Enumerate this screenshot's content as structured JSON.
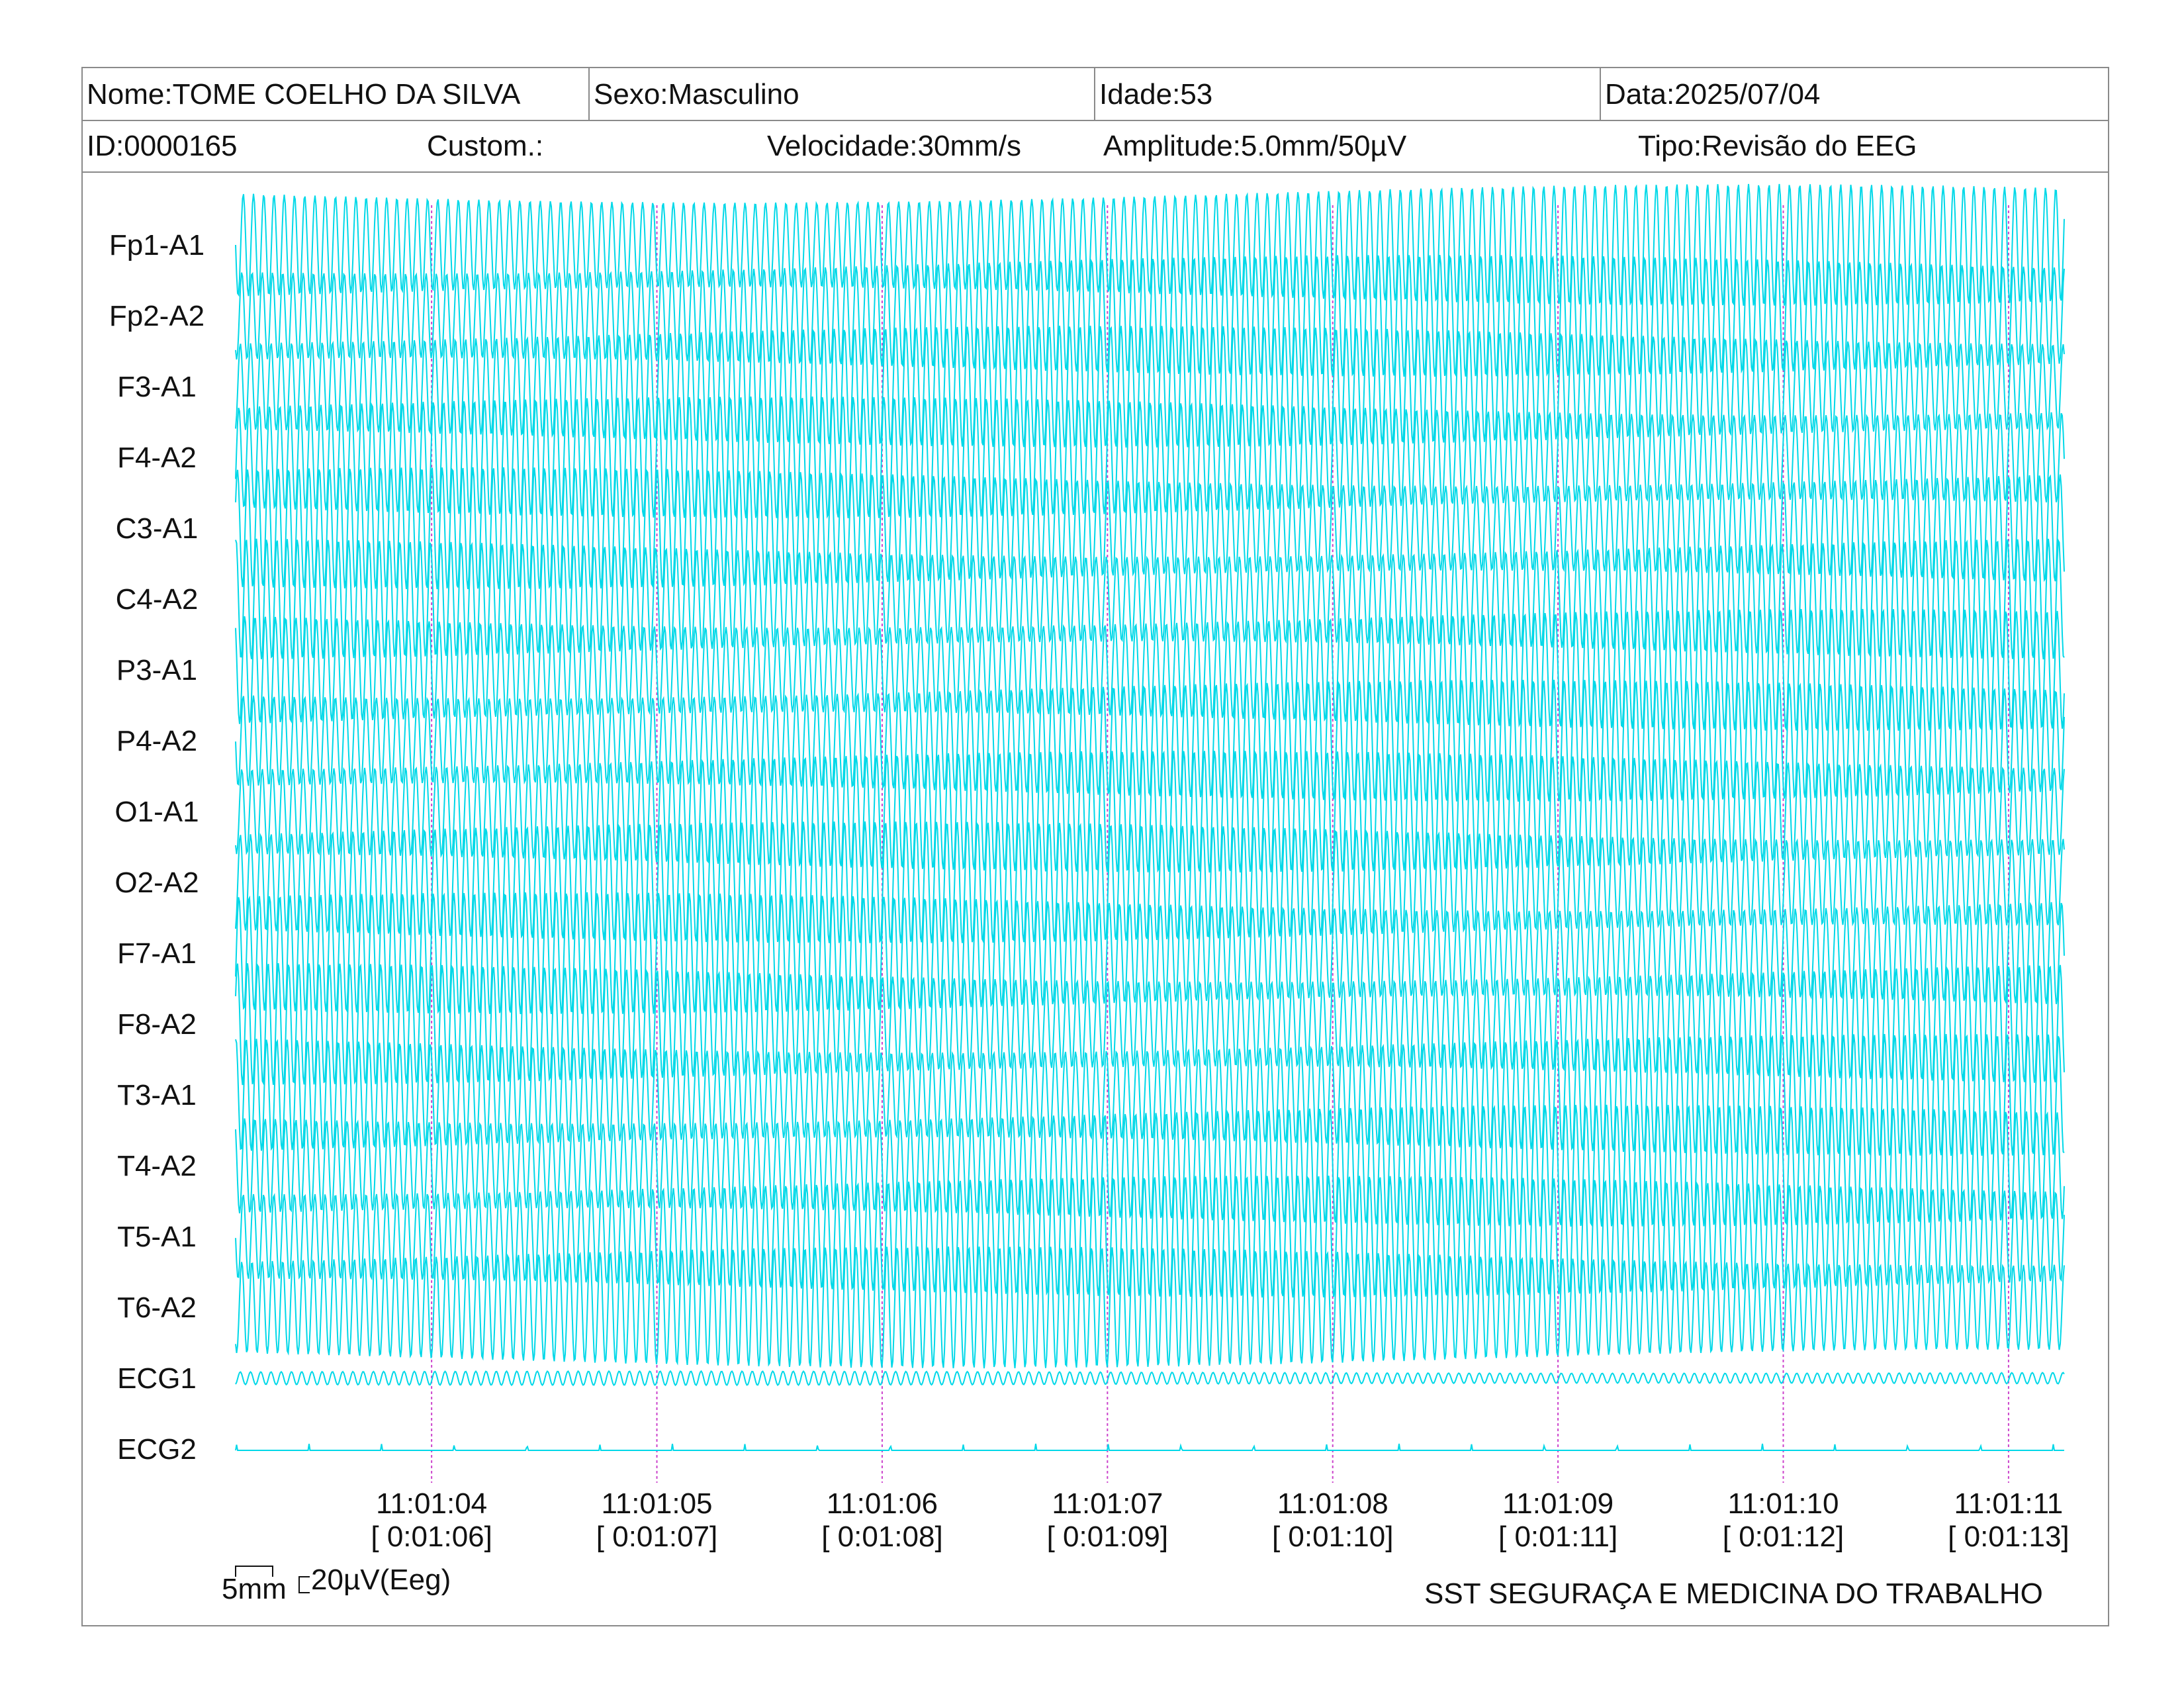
{
  "header": {
    "nome": "Nome:TOME COELHO DA SILVA",
    "sexo": "Sexo:Masculino",
    "idade": "Idade:53",
    "data": "Data:2025/07/04",
    "id": "ID:0000165",
    "custom": "Custom.:",
    "velocidade": "Velocidade:30mm/s",
    "amplitude": "Amplitude:5.0mm/50µV",
    "tipo": "Tipo:Revisão do EEG"
  },
  "footer": {
    "scale_time": "5mm",
    "scale_amp": "20µV(Eeg)",
    "institution": "SST SEGURAÇA E MEDICINA DO TRABALHO"
  },
  "colors": {
    "trace": "#00d8e8",
    "marker": "#cc44cc",
    "border": "#8a8a8a"
  },
  "chart_data": {
    "type": "line",
    "channels": [
      "Fp1-A1",
      "Fp2-A2",
      "F3-A1",
      "F4-A2",
      "C3-A1",
      "C4-A2",
      "P3-A1",
      "P4-A2",
      "O1-A1",
      "O2-A2",
      "F7-A1",
      "F8-A2",
      "T3-A1",
      "T4-A2",
      "T5-A1",
      "T6-A2",
      "ECG1",
      "ECG2"
    ],
    "time_ticks": [
      "11:01:04",
      "11:01:05",
      "11:01:06",
      "11:01:07",
      "11:01:08",
      "11:01:09",
      "11:01:10",
      "11:01:11"
    ],
    "elapsed_ticks": [
      "[ 0:01:06]",
      "[ 0:01:07]",
      "[ 0:01:08]",
      "[ 0:01:09]",
      "[ 0:01:10]",
      "[ 0:01:11]",
      "[ 0:01:12]",
      "[ 0:01:13]"
    ],
    "x_range_seconds": [
      3.13,
      11.25
    ],
    "eeg_dominant_frequency_hz": 22,
    "ecg1_frequency_hz": 22,
    "ecg2": "baseline with small periodic deflections",
    "grid": false
  }
}
